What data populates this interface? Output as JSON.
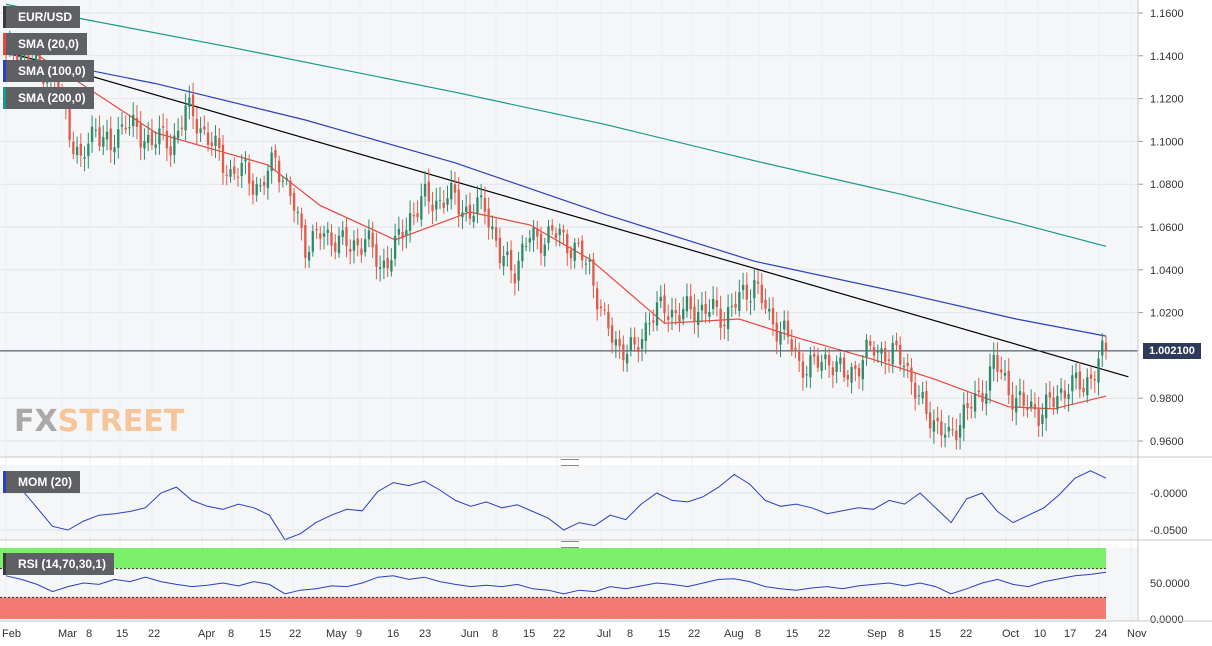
{
  "pair": "EUR/USD",
  "current_price": "1.002100",
  "logo": {
    "part1": "FX",
    "part2": "STREET"
  },
  "indicators": {
    "sma20": "SMA (20,0)",
    "sma100": "SMA (100,0)",
    "sma200": "SMA (200,0)",
    "mom": "MOM (20)",
    "rsi": "RSI (14,70,30,1)"
  },
  "colors": {
    "bull": "#2e8b6a",
    "bear": "#e05a4a",
    "sma20": "#e8463d",
    "sma100": "#2a3fbf",
    "sma200": "#149a8a",
    "trendline": "#000000",
    "mom": "#2a3fbf",
    "rsi": "#2a3fbf",
    "rsi_overbought": "#7cf06a",
    "rsi_oversold": "#f47a72"
  },
  "chart_data": [
    {
      "type": "candlestick",
      "title": "EUR/USD",
      "yticks": [
        "1.1600",
        "1.1400",
        "1.1200",
        "1.1000",
        "1.0800",
        "1.0600",
        "1.0400",
        "1.0200",
        "0.9800",
        "0.9600"
      ],
      "ylim": [
        0.954,
        1.165
      ],
      "last_price": 1.0021,
      "x_labels": [
        "Feb",
        "Mar",
        "8",
        "15",
        "22",
        "Apr",
        "8",
        "15",
        "22",
        "May",
        "9",
        "16",
        "23",
        "Jun",
        "8",
        "15",
        "22",
        "Jul",
        "8",
        "15",
        "22",
        "Aug",
        "8",
        "15",
        "22",
        "Sep",
        "8",
        "15",
        "22",
        "Oct",
        "10",
        "17",
        "24",
        "Nov"
      ],
      "close_path": [
        [
          0,
          1.144
        ],
        [
          5,
          1.14
        ],
        [
          10,
          1.134
        ],
        [
          14,
          1.124
        ],
        [
          18,
          1.1
        ],
        [
          20,
          1.089
        ],
        [
          24,
          1.108
        ],
        [
          28,
          1.095
        ],
        [
          32,
          1.112
        ],
        [
          36,
          1.1
        ],
        [
          40,
          1.103
        ],
        [
          44,
          1.097
        ],
        [
          48,
          1.115
        ],
        [
          52,
          1.107
        ],
        [
          56,
          1.096
        ],
        [
          60,
          1.085
        ],
        [
          64,
          1.086
        ],
        [
          68,
          1.077
        ],
        [
          72,
          1.093
        ],
        [
          76,
          1.074
        ],
        [
          80,
          1.052
        ],
        [
          84,
          1.056
        ],
        [
          88,
          1.055
        ],
        [
          92,
          1.05
        ],
        [
          96,
          1.055
        ],
        [
          100,
          1.041
        ],
        [
          104,
          1.05
        ],
        [
          108,
          1.065
        ],
        [
          112,
          1.073
        ],
        [
          116,
          1.072
        ],
        [
          120,
          1.074
        ],
        [
          124,
          1.065
        ],
        [
          128,
          1.072
        ],
        [
          132,
          1.045
        ],
        [
          136,
          1.041
        ],
        [
          140,
          1.055
        ],
        [
          144,
          1.055
        ],
        [
          148,
          1.057
        ],
        [
          152,
          1.049
        ],
        [
          156,
          1.042
        ],
        [
          160,
          1.014
        ],
        [
          164,
          1.004
        ],
        [
          168,
          1.001
        ],
        [
          172,
          1.018
        ],
        [
          176,
          1.022
        ],
        [
          180,
          1.019
        ],
        [
          184,
          1.022
        ],
        [
          188,
          1.021
        ],
        [
          192,
          1.018
        ],
        [
          196,
          1.026
        ],
        [
          200,
          1.034
        ],
        [
          204,
          1.017
        ],
        [
          208,
          1.011
        ],
        [
          212,
          0.996
        ],
        [
          216,
          0.995
        ],
        [
          220,
          0.999
        ],
        [
          224,
          0.99
        ],
        [
          228,
          0.996
        ],
        [
          232,
          1.004
        ],
        [
          236,
          1.0
        ],
        [
          240,
          0.999
        ],
        [
          244,
          0.978
        ],
        [
          248,
          0.97
        ],
        [
          252,
          0.96
        ],
        [
          256,
          0.974
        ],
        [
          260,
          0.979
        ],
        [
          264,
          0.997
        ],
        [
          268,
          0.984
        ],
        [
          272,
          0.976
        ],
        [
          276,
          0.974
        ],
        [
          280,
          0.978
        ],
        [
          284,
          0.987
        ],
        [
          288,
          0.985
        ],
        [
          292,
          0.997
        ],
        [
          294,
          1.0021
        ]
      ],
      "series": [
        {
          "name": "SMA (20,0)",
          "path": [
            [
              0,
              1.15
            ],
            [
              40,
              1.104
            ],
            [
              70,
              1.089
            ],
            [
              84,
              1.07
            ],
            [
              104,
              1.054
            ],
            [
              124,
              1.067
            ],
            [
              140,
              1.061
            ],
            [
              156,
              1.045
            ],
            [
              176,
              1.015
            ],
            [
              196,
              1.017
            ],
            [
              212,
              1.008
            ],
            [
              232,
              0.998
            ],
            [
              248,
              0.989
            ],
            [
              268,
              0.976
            ],
            [
              280,
              0.975
            ],
            [
              294,
              0.981
            ]
          ]
        },
        {
          "name": "SMA (100,0)",
          "path": [
            [
              0,
              1.141
            ],
            [
              40,
              1.127
            ],
            [
              80,
              1.11
            ],
            [
              120,
              1.09
            ],
            [
              160,
              1.066
            ],
            [
              200,
              1.044
            ],
            [
              240,
              1.029
            ],
            [
              270,
              1.017
            ],
            [
              294,
              1.009
            ]
          ]
        },
        {
          "name": "SMA (200,0)",
          "path": [
            [
              0,
              1.164
            ],
            [
              60,
              1.144
            ],
            [
              120,
              1.123
            ],
            [
              160,
              1.108
            ],
            [
              200,
              1.091
            ],
            [
              240,
              1.075
            ],
            [
              270,
              1.062
            ],
            [
              294,
              1.051
            ]
          ]
        },
        {
          "name": "trendline",
          "path": [
            [
              0,
              1.142
            ],
            [
              300,
              0.99
            ]
          ]
        }
      ]
    },
    {
      "type": "line",
      "title": "MOM (20)",
      "yticks": [
        "-0.0000",
        "-0.0500"
      ],
      "ylim": [
        -0.066,
        0.035
      ],
      "values": [
        0.022,
        0.005,
        -0.02,
        -0.045,
        -0.05,
        -0.038,
        -0.03,
        -0.028,
        -0.025,
        -0.02,
        0.0,
        0.008,
        -0.01,
        -0.018,
        -0.022,
        -0.015,
        -0.02,
        -0.03,
        -0.063,
        -0.055,
        -0.04,
        -0.03,
        -0.022,
        -0.024,
        0.002,
        0.014,
        0.01,
        0.016,
        0.004,
        -0.01,
        -0.018,
        -0.012,
        -0.02,
        -0.016,
        -0.025,
        -0.034,
        -0.05,
        -0.04,
        -0.044,
        -0.03,
        -0.036,
        -0.015,
        0.0,
        -0.01,
        -0.012,
        -0.005,
        0.008,
        0.025,
        0.012,
        -0.01,
        -0.018,
        -0.015,
        -0.02,
        -0.028,
        -0.024,
        -0.02,
        -0.022,
        -0.01,
        -0.015,
        0.0,
        -0.02,
        -0.04,
        -0.008,
        0.0,
        -0.025,
        -0.04,
        -0.03,
        -0.02,
        -0.002,
        0.02,
        0.03,
        0.02
      ]
    },
    {
      "type": "line",
      "title": "RSI (14,70,30,1)",
      "yticks": [
        "50.0000",
        "0.0000"
      ],
      "ylim": [
        0,
        100
      ],
      "thresholds": [
        70,
        30
      ],
      "values": [
        60,
        55,
        48,
        38,
        45,
        50,
        48,
        55,
        52,
        58,
        52,
        48,
        45,
        47,
        50,
        46,
        52,
        48,
        35,
        40,
        42,
        46,
        45,
        50,
        58,
        60,
        55,
        58,
        52,
        48,
        45,
        47,
        45,
        48,
        42,
        40,
        35,
        40,
        38,
        45,
        42,
        46,
        50,
        48,
        45,
        50,
        55,
        56,
        52,
        45,
        42,
        40,
        43,
        45,
        42,
        46,
        48,
        50,
        46,
        50,
        45,
        35,
        42,
        50,
        55,
        48,
        45,
        52,
        56,
        60,
        62,
        65
      ]
    }
  ]
}
